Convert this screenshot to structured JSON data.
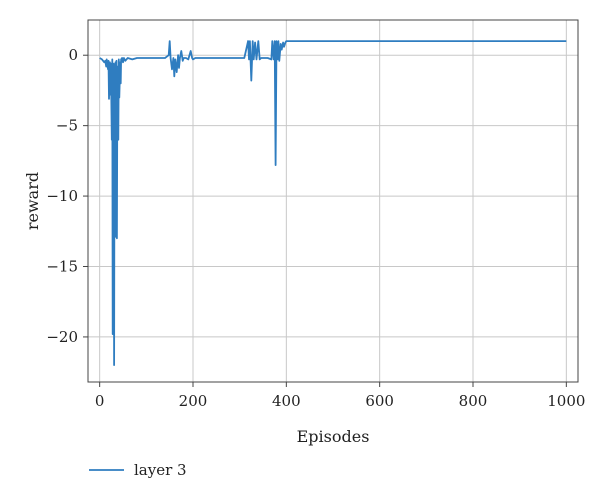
{
  "chart_data": {
    "type": "line",
    "title": "",
    "xlabel": "Episodes",
    "ylabel": "reward",
    "xlim": [
      -25,
      1025
    ],
    "ylim": [
      -23.2,
      2.5
    ],
    "xticks": [
      0,
      200,
      400,
      600,
      800,
      1000
    ],
    "xtick_labels": [
      "0",
      "200",
      "400",
      "600",
      "800",
      "1000"
    ],
    "yticks": [
      0,
      -5,
      -10,
      -15,
      -20
    ],
    "ytick_labels": [
      "0",
      "−5",
      "−10",
      "−15",
      "−20"
    ],
    "grid": true,
    "legend": {
      "placement": "bottom-left",
      "entries": [
        "layer 3"
      ]
    },
    "colors": {
      "series": "#2f7dc0",
      "grid": "#c8c8c8",
      "frame": "#444444"
    },
    "series": [
      {
        "name": "layer 3",
        "x": [
          0,
          5,
          10,
          12,
          14,
          15,
          16,
          18,
          19,
          20,
          22,
          23,
          24,
          26,
          27,
          28,
          30,
          31,
          32,
          33,
          34,
          35,
          36,
          37,
          38,
          40,
          41,
          42,
          44,
          45,
          46,
          48,
          50,
          52,
          55,
          60,
          70,
          80,
          100,
          120,
          140,
          148,
          150,
          152,
          155,
          158,
          160,
          162,
          165,
          168,
          170,
          172,
          175,
          178,
          180,
          185,
          190,
          195,
          198,
          200,
          205,
          210,
          230,
          260,
          290,
          310,
          318,
          320,
          322,
          325,
          328,
          330,
          333,
          336,
          340,
          343,
          346,
          350,
          355,
          360,
          368,
          370,
          373,
          375,
          377,
          379,
          381,
          383,
          385,
          388,
          390,
          393,
          395,
          398,
          400,
          420,
          500,
          600,
          700,
          800,
          900,
          1000
        ],
        "y": [
          -0.2,
          -0.3,
          -0.5,
          -0.4,
          -0.8,
          -0.3,
          -0.6,
          -1.0,
          -0.4,
          -3.1,
          -0.5,
          -2.8,
          -0.6,
          -6.0,
          -0.3,
          -19.8,
          -0.6,
          -22.0,
          -1.0,
          -5.0,
          -0.5,
          -12.9,
          -0.4,
          -13.0,
          -0.8,
          -6.0,
          -0.3,
          -3.0,
          -0.5,
          -2.0,
          -0.3,
          -0.2,
          -0.5,
          -0.2,
          -0.4,
          -0.2,
          -0.3,
          -0.2,
          -0.2,
          -0.2,
          -0.2,
          0.0,
          1.0,
          -0.2,
          -1.0,
          -0.2,
          -1.5,
          -0.3,
          -1.2,
          0.0,
          -0.9,
          -0.2,
          0.3,
          -0.4,
          -0.2,
          -0.2,
          -0.3,
          0.3,
          -0.2,
          -0.3,
          -0.2,
          -0.2,
          -0.2,
          -0.2,
          -0.2,
          -0.2,
          1.0,
          -0.3,
          1.0,
          -1.8,
          1.0,
          -0.3,
          0.9,
          -0.3,
          1.0,
          -0.3,
          -0.2,
          -0.2,
          -0.2,
          -0.2,
          -0.3,
          1.0,
          -0.3,
          1.0,
          -7.8,
          1.0,
          -0.3,
          1.0,
          -0.4,
          0.8,
          0.4,
          0.9,
          0.6,
          0.9,
          1.0,
          1.0,
          1.0,
          1.0,
          1.0,
          1.0,
          1.0,
          1.0
        ]
      }
    ]
  }
}
